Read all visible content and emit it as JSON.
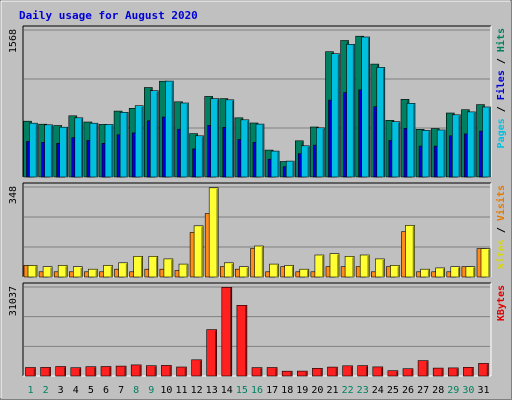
{
  "chart_data": [
    {
      "type": "bar",
      "title": "Daily usage for August 2020",
      "panel": "pages-files-hits",
      "ymax_label": "1568",
      "ylim": [
        0,
        1568
      ],
      "grid": true,
      "legend": {
        "placement": "right",
        "entries": [
          {
            "text": "Pages",
            "color": "#00c0e0"
          },
          {
            "text": " / ",
            "color": "#000000"
          },
          {
            "text": "Files",
            "color": "#0000d8"
          },
          {
            "text": " / ",
            "color": "#000000"
          },
          {
            "text": "Hits",
            "color": "#008060"
          }
        ]
      },
      "categories": [
        "1",
        "2",
        "3",
        "4",
        "5",
        "6",
        "7",
        "8",
        "9",
        "10",
        "11",
        "12",
        "13",
        "14",
        "15",
        "16",
        "17",
        "18",
        "19",
        "20",
        "21",
        "22",
        "23",
        "24",
        "25",
        "26",
        "27",
        "28",
        "29",
        "30",
        "31"
      ],
      "series": [
        {
          "name": "Hits",
          "color": "#008060",
          "values": [
            595,
            563,
            549,
            653,
            587,
            561,
            703,
            733,
            955,
            1022,
            802,
            463,
            860,
            836,
            631,
            576,
            287,
            165,
            386,
            533,
            1337,
            1456,
            1502,
            1204,
            605,
            829,
            509,
            516,
            683,
            718,
            772
          ]
        },
        {
          "name": "Files",
          "color": "#0000d8",
          "values": [
            380,
            370,
            360,
            420,
            390,
            360,
            450,
            470,
            600,
            640,
            510,
            300,
            550,
            530,
            400,
            370,
            190,
            110,
            250,
            340,
            820,
            900,
            930,
            750,
            390,
            520,
            330,
            330,
            440,
            460,
            490
          ]
        },
        {
          "name": "Pages",
          "color": "#00c0e0",
          "values": [
            574,
            557,
            531,
            632,
            574,
            560,
            690,
            761,
            921,
            1023,
            789,
            439,
            836,
            824,
            610,
            564,
            276,
            170,
            333,
            525,
            1315,
            1415,
            1493,
            1169,
            590,
            786,
            497,
            501,
            663,
            694,
            747
          ]
        }
      ]
    },
    {
      "type": "bar",
      "panel": "sites-visits",
      "ymax_label": "348",
      "ylim": [
        0,
        348
      ],
      "grid": true,
      "legend": {
        "placement": "right",
        "entries": [
          {
            "text": "Sites",
            "color": "#d8d800"
          },
          {
            "text": " / ",
            "color": "#000000"
          },
          {
            "text": "Visits",
            "color": "#e87800"
          }
        ]
      },
      "categories": [
        "1",
        "2",
        "3",
        "4",
        "5",
        "6",
        "7",
        "8",
        "9",
        "10",
        "11",
        "12",
        "13",
        "14",
        "15",
        "16",
        "17",
        "18",
        "19",
        "20",
        "21",
        "22",
        "23",
        "24",
        "25",
        "26",
        "27",
        "28",
        "29",
        "30",
        "31"
      ],
      "series": [
        {
          "name": "Visits",
          "color": "#ff8c1a",
          "values": [
            45,
            20,
            20,
            20,
            20,
            20,
            30,
            20,
            30,
            30,
            25,
            172,
            245,
            40,
            30,
            110,
            20,
            40,
            20,
            20,
            40,
            40,
            40,
            20,
            40,
            175,
            20,
            20,
            20,
            40,
            110
          ]
        },
        {
          "name": "Sites",
          "color": "#ffff33",
          "values": [
            45,
            40,
            45,
            40,
            30,
            45,
            55,
            80,
            80,
            70,
            50,
            198,
            345,
            55,
            40,
            120,
            50,
            45,
            30,
            85,
            90,
            80,
            85,
            70,
            45,
            200,
            30,
            35,
            40,
            40,
            110
          ]
        }
      ]
    },
    {
      "type": "bar",
      "panel": "kbytes",
      "ymax_label": "31037",
      "ylim": [
        0,
        31037
      ],
      "grid": true,
      "legend": {
        "placement": "right",
        "entries": [
          {
            "text": "KBytes",
            "color": "#e00000"
          }
        ]
      },
      "categories": [
        "1",
        "2",
        "3",
        "4",
        "5",
        "6",
        "7",
        "8",
        "9",
        "10",
        "11",
        "12",
        "13",
        "14",
        "15",
        "16",
        "17",
        "18",
        "19",
        "20",
        "21",
        "22",
        "23",
        "24",
        "25",
        "26",
        "27",
        "28",
        "29",
        "30",
        "31"
      ],
      "x_label_colors": [
        "#008060",
        "#008060",
        "#000000",
        "#000000",
        "#000000",
        "#000000",
        "#000000",
        "#008060",
        "#008060",
        "#000000",
        "#000000",
        "#000000",
        "#000000",
        "#000000",
        "#008060",
        "#008060",
        "#000000",
        "#000000",
        "#000000",
        "#000000",
        "#000000",
        "#008060",
        "#008060",
        "#000000",
        "#000000",
        "#000000",
        "#000000",
        "#000000",
        "#008060",
        "#008060",
        "#000000"
      ],
      "series": [
        {
          "name": "KBytes",
          "color": "#ff2020",
          "values": [
            2950,
            2990,
            3300,
            2880,
            3230,
            3330,
            3440,
            3860,
            3580,
            3690,
            3150,
            5640,
            16170,
            30930,
            24650,
            2940,
            2980,
            1660,
            1710,
            2680,
            3120,
            3540,
            3620,
            3190,
            1850,
            2560,
            5380,
            2740,
            2830,
            3050,
            4400
          ]
        }
      ]
    }
  ]
}
